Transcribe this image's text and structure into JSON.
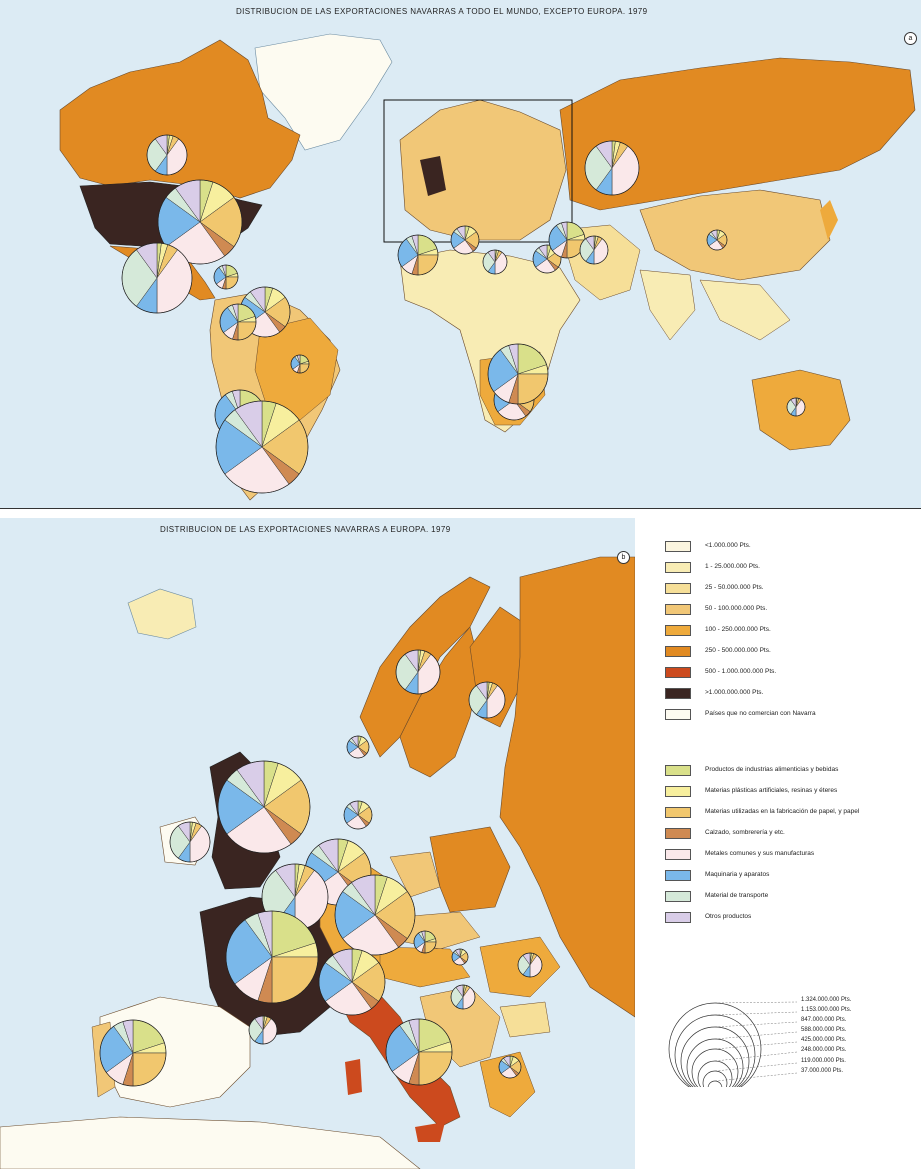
{
  "top_map": {
    "title": "DISTRIBUCION DE LAS EXPORTACIONES NAVARRAS A TODO EL MUNDO, EXCEPTO EUROPA. 1979",
    "panel_number": "a"
  },
  "bottom_map": {
    "title": "DISTRIBUCION DE LAS EXPORTACIONES NAVARRAS A EUROPA. 1979",
    "panel_number": "b"
  },
  "legend": {
    "value_classes": [
      {
        "label": "<1.000.000 Pts.",
        "color": "#fbf5df"
      },
      {
        "label": "1 - 25.000.000 Pts.",
        "color": "#f8ecb4"
      },
      {
        "label": "25 - 50.000.000 Pts.",
        "color": "#f6df98"
      },
      {
        "label": "50 - 100.000.000 Pts.",
        "color": "#f1c777"
      },
      {
        "label": "100 - 250.000.000 Pts.",
        "color": "#eeaa3c"
      },
      {
        "label": "250 - 500.000.000 Pts.",
        "color": "#e18a22"
      },
      {
        "label": "500 - 1.000.000.000 Pts.",
        "color": "#cc4a1e"
      },
      {
        "label": ">1.000.000.000 Pts.",
        "color": "#3a2521"
      },
      {
        "label": "Países que no comercian con Navarra",
        "color": "#fdfbf1"
      }
    ],
    "product_classes": [
      {
        "label": "Productos de industrias alimenticias y bebidas",
        "color": "#d9e08a"
      },
      {
        "label": "Materias plásticas artificiales, resinas y éteres",
        "color": "#f7ef9e"
      },
      {
        "label": "Materias utilizadas en la fabricación de papel, y papel",
        "color": "#f1c76e"
      },
      {
        "label": "Calzado, sombrerería y etc.",
        "color": "#cf8a52"
      },
      {
        "label": "Metales comunes y sus manufacturas",
        "color": "#fae8ea"
      },
      {
        "label": "Maquinaria y aparatos",
        "color": "#7ab8ea"
      },
      {
        "label": "Material de transporte",
        "color": "#d5e9d9"
      },
      {
        "label": "Otros productos",
        "color": "#d9cde8"
      }
    ],
    "scale": [
      "1.324.000.000 Pts.",
      "1.153.000.000 Pts.",
      "847.000.000 Pts.",
      "588.000.000 Pts.",
      "425.000.000 Pts.",
      "248.000.000 Pts.",
      "119.000.000 Pts.",
      "37.000.000 Pts."
    ]
  }
}
